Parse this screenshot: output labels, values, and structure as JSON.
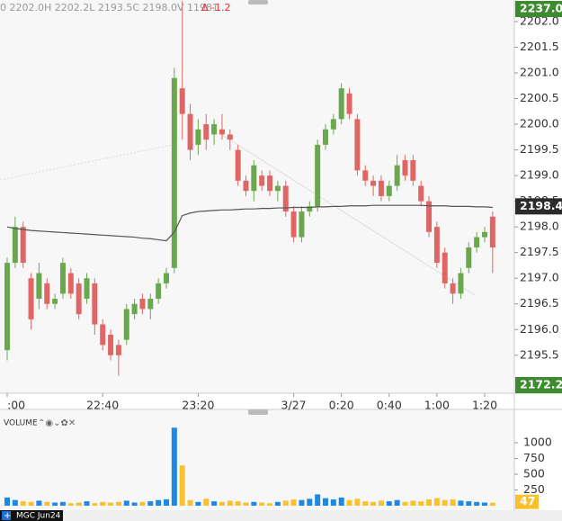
{
  "chart_data": [
    {
      "type": "candlestick",
      "header_text": "0 2202.0H 2202.2L 2193.5C 2198.0V 11981",
      "change_text": "Δ -1.2",
      "categories": [
        ":00",
        null,
        null,
        null,
        null,
        null,
        null,
        null,
        null,
        null,
        null,
        null,
        "22:40",
        null,
        null,
        null,
        null,
        null,
        null,
        null,
        null,
        null,
        null,
        null,
        "23:20",
        null,
        null,
        null,
        null,
        null,
        null,
        null,
        null,
        null,
        null,
        null,
        "3/27",
        null,
        null,
        null,
        null,
        null,
        "0:20",
        null,
        null,
        null,
        null,
        null,
        "0:40",
        null,
        null,
        null,
        null,
        null,
        "1:00",
        null,
        null,
        null,
        null,
        null,
        "1:20",
        null
      ],
      "open": [
        2195.6,
        2197.3,
        2198.0,
        2197.0,
        2196.6,
        2196.9,
        2196.5,
        2196.7,
        2197.1,
        2196.9,
        2196.6,
        2196.9,
        2196.1,
        2195.9,
        2195.7,
        2195.8,
        2196.3,
        2196.6,
        2196.4,
        2196.6,
        2196.9,
        2197.2,
        2200.7,
        2200.2,
        2199.6,
        2200.0,
        2199.8,
        2199.9,
        2199.8,
        2199.5,
        2198.9,
        2198.7,
        2199.0,
        2199.0,
        2198.7,
        2198.8,
        2198.3,
        2197.8,
        2198.3,
        2198.4,
        2199.6,
        2199.9,
        2200.1,
        2200.6,
        2200.1,
        2199.1,
        2198.9,
        2198.9,
        2198.6,
        2198.8,
        2199.3,
        2199.3,
        2198.8,
        2198.5,
        2198.0,
        2197.5,
        2196.9,
        2196.7,
        2197.2,
        2197.6,
        2197.8,
        2198.2
      ],
      "high": [
        2197.4,
        2198.2,
        2198.1,
        2197.1,
        2197.3,
        2197.0,
        2196.7,
        2197.4,
        2197.2,
        2197.0,
        2197.1,
        2197.0,
        2196.2,
        2196.0,
        2195.8,
        2196.5,
        2196.6,
        2196.7,
        2196.7,
        2197.0,
        2197.2,
        2201.1,
        2202.4,
        2200.4,
        2200.1,
        2200.2,
        2200.1,
        2200.2,
        2199.9,
        2199.6,
        2199.0,
        2199.3,
        2199.1,
        2199.1,
        2198.9,
        2198.9,
        2198.4,
        2198.4,
        2198.5,
        2199.7,
        2200.0,
        2200.2,
        2200.8,
        2200.7,
        2200.2,
        2199.2,
        2199.0,
        2199.0,
        2198.9,
        2199.4,
        2199.4,
        2199.4,
        2198.9,
        2198.6,
        2198.1,
        2197.6,
        2197.0,
        2197.2,
        2197.7,
        2197.9,
        2198.0,
        2198.3
      ],
      "low": [
        2195.4,
        2197.2,
        2197.2,
        2196.0,
        2196.4,
        2196.4,
        2196.4,
        2196.6,
        2196.6,
        2196.2,
        2196.5,
        2195.9,
        2195.6,
        2195.4,
        2195.1,
        2195.7,
        2196.2,
        2196.3,
        2196.2,
        2196.5,
        2196.8,
        2197.1,
        2199.7,
        2199.3,
        2199.4,
        2199.5,
        2199.6,
        2199.7,
        2199.5,
        2198.8,
        2198.6,
        2198.5,
        2198.7,
        2198.6,
        2198.5,
        2198.2,
        2197.7,
        2197.7,
        2198.2,
        2198.3,
        2199.5,
        2199.8,
        2200.0,
        2200.1,
        2199.0,
        2198.8,
        2198.6,
        2198.5,
        2198.5,
        2198.7,
        2198.9,
        2198.8,
        2198.4,
        2197.8,
        2197.2,
        2196.8,
        2196.5,
        2196.6,
        2197.1,
        2197.5,
        2197.7,
        2197.1
      ],
      "close": [
        2197.3,
        2198.0,
        2197.3,
        2196.2,
        2197.1,
        2196.5,
        2196.6,
        2197.3,
        2196.7,
        2196.3,
        2197.0,
        2196.1,
        2195.7,
        2195.5,
        2195.5,
        2196.4,
        2196.5,
        2196.4,
        2196.6,
        2196.9,
        2197.1,
        2200.9,
        2200.2,
        2199.5,
        2199.9,
        2199.7,
        2200.0,
        2199.8,
        2199.7,
        2198.9,
        2198.7,
        2199.2,
        2198.8,
        2198.7,
        2198.8,
        2198.3,
        2197.8,
        2198.3,
        2198.4,
        2199.6,
        2199.9,
        2200.1,
        2200.7,
        2200.2,
        2199.1,
        2198.9,
        2198.8,
        2198.6,
        2198.8,
        2199.2,
        2199.0,
        2198.9,
        2198.5,
        2197.9,
        2197.3,
        2196.9,
        2196.7,
        2197.1,
        2197.6,
        2197.8,
        2197.9,
        2197.6
      ],
      "ma_values": [
        2198.0,
        2197.97,
        2197.95,
        2197.93,
        2197.92,
        2197.91,
        2197.9,
        2197.89,
        2197.88,
        2197.87,
        2197.86,
        2197.85,
        2197.84,
        2197.83,
        2197.82,
        2197.81,
        2197.8,
        2197.78,
        2197.77,
        2197.75,
        2197.73,
        2197.9,
        2198.22,
        2198.27,
        2198.3,
        2198.31,
        2198.32,
        2198.33,
        2198.33,
        2198.34,
        2198.35,
        2198.35,
        2198.36,
        2198.36,
        2198.37,
        2198.37,
        2198.38,
        2198.38,
        2198.38,
        2198.39,
        2198.39,
        2198.4,
        2198.4,
        2198.41,
        2198.41,
        2198.41,
        2198.42,
        2198.42,
        2198.42,
        2198.42,
        2198.42,
        2198.42,
        2198.42,
        2198.41,
        2198.41,
        2198.41,
        2198.4,
        2198.4,
        2198.4,
        2198.39,
        2198.39,
        2198.38
      ],
      "ma_color": "#555555",
      "up_color": "#6aa84f",
      "down_color": "#e06666",
      "ylim": [
        2194.76,
        2202.42
      ],
      "yticks": [
        2195.5,
        {
          "value": 2196,
          "label": "2196.0"
        },
        2196.5,
        {
          "value": 2197,
          "label": "2197.0"
        },
        2197.5,
        {
          "value": 2198,
          "label": "2198.0"
        },
        2198.5,
        {
          "value": 2199,
          "label": "2199.0"
        },
        2199.5,
        {
          "value": 2200,
          "label": "2200.0"
        },
        2200.5,
        {
          "value": 2201,
          "label": "2201.0"
        },
        2201.5,
        {
          "value": 2202,
          "label": "2202.0"
        }
      ],
      "top_tag": {
        "value": 2237,
        "label": "2237.0"
      },
      "last_tag": 2198.4,
      "bottom_tag": {
        "value": 2172.2,
        "label": "2172.2"
      }
    },
    {
      "type": "bar",
      "title": "VOLUME",
      "values": [
        130,
        90,
        70,
        60,
        80,
        60,
        50,
        60,
        40,
        50,
        70,
        40,
        60,
        50,
        60,
        80,
        50,
        60,
        70,
        90,
        100,
        1240,
        640,
        90,
        60,
        110,
        70,
        60,
        80,
        70,
        50,
        60,
        50,
        40,
        60,
        80,
        100,
        90,
        110,
        180,
        120,
        100,
        130,
        90,
        110,
        70,
        60,
        80,
        70,
        90,
        60,
        80,
        70,
        100,
        120,
        90,
        100,
        80,
        70,
        60,
        50,
        47
      ],
      "up_color": "#1e88e5",
      "down_color": "#fbc02d",
      "ylim": [
        0,
        1530
      ],
      "yticks": [
        250,
        500,
        750,
        1000
      ],
      "last_tag": 47,
      "footer_text": "MGC Jun24"
    }
  ]
}
